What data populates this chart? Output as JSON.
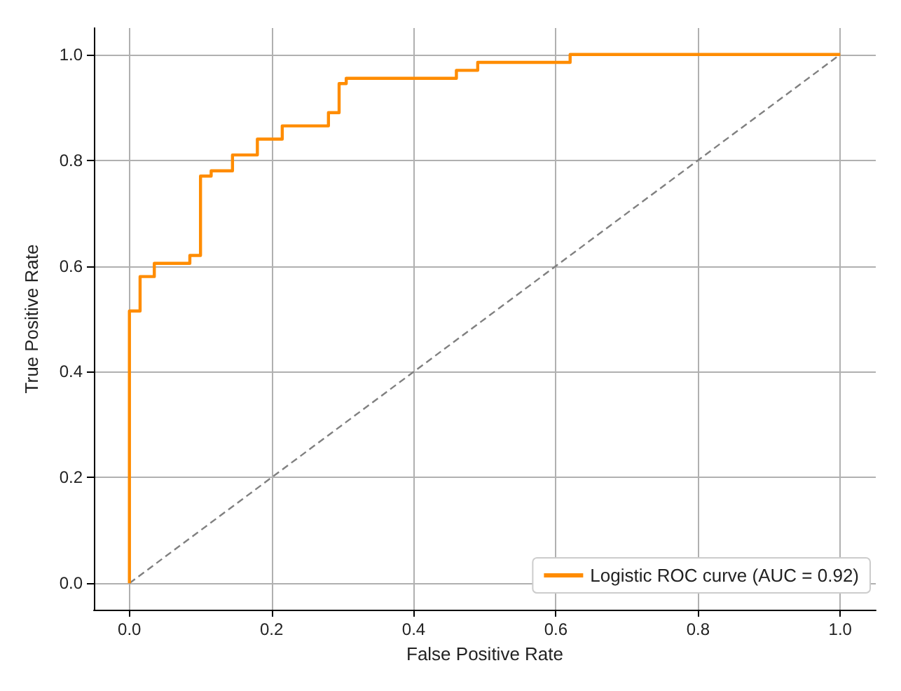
{
  "chart_data": {
    "type": "line",
    "xlabel": "False Positive Rate",
    "ylabel": "True Positive Rate",
    "xlim": [
      -0.05,
      1.05
    ],
    "ylim": [
      -0.05,
      1.05
    ],
    "xticks": [
      {
        "value": 0,
        "label": "0.0"
      },
      {
        "value": 0.2,
        "label": "0.2"
      },
      {
        "value": 0.4,
        "label": "0.4"
      },
      {
        "value": 0.6,
        "label": "0.6"
      },
      {
        "value": 0.8,
        "label": "0.8"
      },
      {
        "value": 1,
        "label": "1.0"
      }
    ],
    "yticks": [
      {
        "value": 0,
        "label": "0.0"
      },
      {
        "value": 0.2,
        "label": "0.2"
      },
      {
        "value": 0.4,
        "label": "0.4"
      },
      {
        "value": 0.6,
        "label": "0.6"
      },
      {
        "value": 0.8,
        "label": "0.8"
      },
      {
        "value": 1,
        "label": "1.0"
      }
    ],
    "grid": true,
    "legend": "bottom right",
    "marker": "none",
    "series": [
      {
        "name": "Logistic ROC curve (AUC = 0.92)",
        "color": "#ff8c00",
        "line_style": "solid",
        "x": [
          0,
          0,
          0.015,
          0.015,
          0.035,
          0.035,
          0.085,
          0.085,
          0.1,
          0.1,
          0.115,
          0.115,
          0.145,
          0.145,
          0.18,
          0.18,
          0.215,
          0.215,
          0.28,
          0.28,
          0.295,
          0.295,
          0.305,
          0.305,
          0.46,
          0.46,
          0.49,
          0.49,
          0.62,
          0.62,
          1
        ],
        "values": [
          0,
          0.515,
          0.515,
          0.58,
          0.58,
          0.605,
          0.605,
          0.62,
          0.62,
          0.77,
          0.77,
          0.78,
          0.78,
          0.81,
          0.81,
          0.84,
          0.84,
          0.865,
          0.865,
          0.89,
          0.89,
          0.945,
          0.945,
          0.955,
          0.955,
          0.97,
          0.97,
          0.985,
          0.985,
          1,
          1
        ]
      },
      {
        "color": "#808080",
        "line_style": "dashed",
        "x": [
          0,
          1
        ],
        "values": [
          0,
          1
        ]
      }
    ]
  }
}
